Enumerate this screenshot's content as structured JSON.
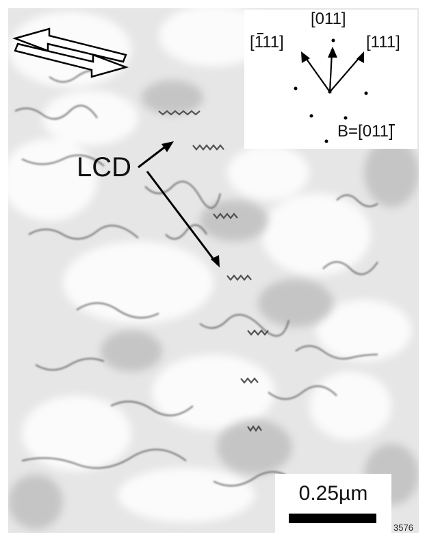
{
  "figure": {
    "annotation_label": "LCD",
    "image_id": "3576",
    "scale_bar_label": "0.25µm",
    "shear_direction_icon": "double-arrow-shear-icon"
  },
  "diffraction_inset": {
    "spots": {
      "top": "[011]",
      "left": "[111]",
      "right": "[111]"
    },
    "zone_axis": "B=[011]"
  }
}
